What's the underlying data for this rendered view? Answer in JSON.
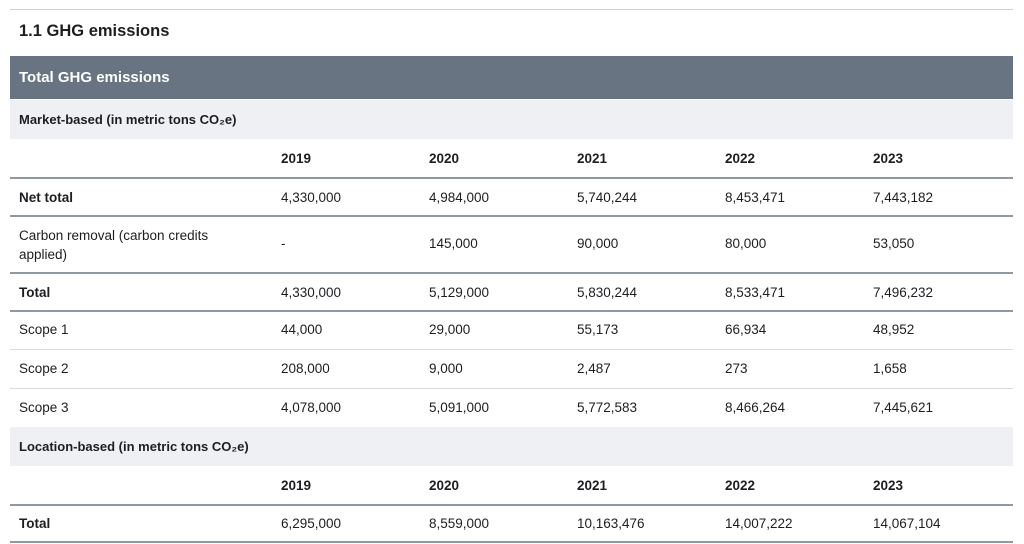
{
  "section_title": "1.1 GHG emissions",
  "table_title": "Total GHG emissions",
  "market": {
    "heading": "Market-based (in metric tons CO₂e)",
    "years": [
      "2019",
      "2020",
      "2021",
      "2022",
      "2023"
    ],
    "rows": [
      {
        "label": "Net total",
        "values": [
          "4,330,000",
          "4,984,000",
          "5,740,244",
          "8,453,471",
          "7,443,182"
        ]
      },
      {
        "label": "Carbon removal (carbon credits applied)",
        "values": [
          "-",
          "145,000",
          "90,000",
          "80,000",
          "53,050"
        ]
      },
      {
        "label": "Total",
        "values": [
          "4,330,000",
          "5,129,000",
          "5,830,244",
          "8,533,471",
          "7,496,232"
        ]
      },
      {
        "label": "Scope 1",
        "values": [
          "44,000",
          "29,000",
          "55,173",
          "66,934",
          "48,952"
        ]
      },
      {
        "label": "Scope 2",
        "values": [
          "208,000",
          "9,000",
          "2,487",
          "273",
          "1,658"
        ]
      },
      {
        "label": "Scope 3",
        "values": [
          "4,078,000",
          "5,091,000",
          "5,772,583",
          "8,466,264",
          "7,445,621"
        ]
      }
    ]
  },
  "location": {
    "heading": "Location-based (in metric tons CO₂e)",
    "years": [
      "2019",
      "2020",
      "2021",
      "2022",
      "2023"
    ],
    "rows": [
      {
        "label": "Total",
        "values": [
          "6,295,000",
          "8,559,000",
          "10,163,476",
          "14,007,222",
          "14,067,104"
        ]
      }
    ]
  }
}
